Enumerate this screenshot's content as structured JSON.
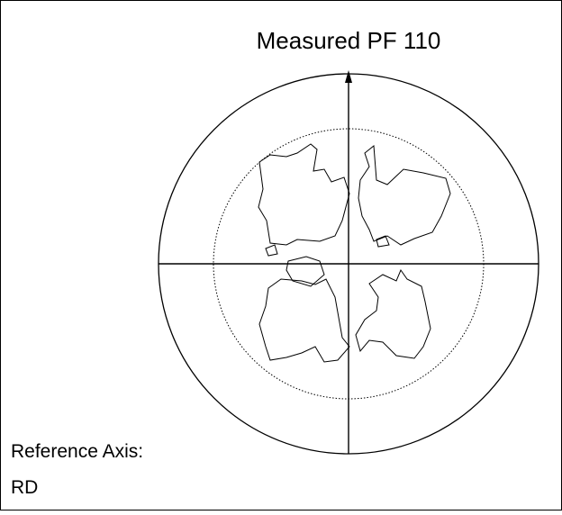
{
  "title": "Measured PF 110",
  "reference_axis": {
    "label": "Reference Axis:",
    "value": "RD"
  }
}
